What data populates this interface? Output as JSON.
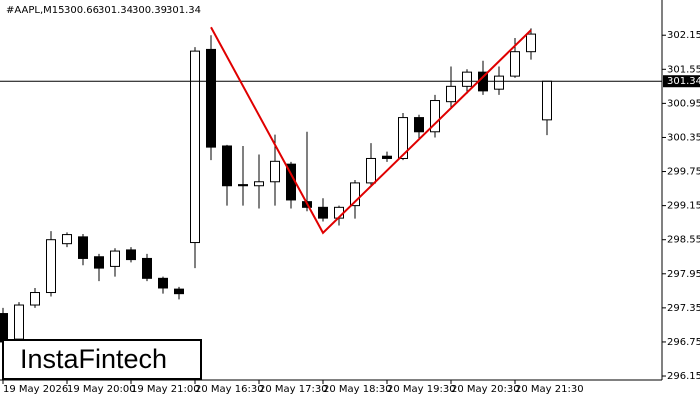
{
  "chart_data": {
    "type": "candlestick",
    "title": "#AAPL,M15",
    "ohlc": [
      300.66,
      301.34,
      300.39,
      301.34
    ],
    "categories": [
      "19 May 2026",
      null,
      null,
      null,
      "19 May 20:00",
      null,
      null,
      null,
      "19 May 21:00",
      null,
      null,
      null,
      "20 May 16:30",
      null,
      null,
      null,
      "20 May 17:30",
      null,
      null,
      null,
      "20 May 18:30",
      null,
      null,
      null,
      "20 May 19:30",
      null,
      null,
      null,
      "20 May 20:30",
      null,
      null,
      null,
      "20 May 21:30",
      null,
      null
    ],
    "open": [
      297.25,
      296.8,
      297.4,
      297.62,
      298.48,
      298.6,
      298.25,
      298.08,
      298.37,
      298.22,
      297.87,
      297.68,
      298.5,
      301.9,
      300.2,
      299.52,
      299.5,
      299.57,
      299.88,
      299.22,
      299.12,
      298.93,
      299.15,
      299.55,
      300.02,
      299.98,
      300.7,
      300.45,
      300.98,
      301.25,
      301.5,
      301.2,
      301.43,
      301.86,
      300.66
    ],
    "high": [
      297.35,
      297.45,
      297.7,
      298.7,
      298.68,
      298.65,
      298.3,
      298.4,
      298.42,
      298.3,
      297.9,
      297.72,
      301.94,
      302.15,
      300.22,
      300.2,
      300.05,
      300.4,
      299.92,
      300.45,
      299.28,
      299.15,
      299.6,
      300.25,
      300.1,
      300.78,
      300.75,
      301.1,
      301.6,
      301.55,
      301.7,
      301.6,
      302.1,
      302.27,
      301.34
    ],
    "low": [
      296.3,
      296.75,
      297.35,
      297.55,
      298.42,
      298.1,
      297.82,
      297.9,
      298.15,
      297.82,
      297.6,
      297.5,
      298.05,
      299.95,
      299.15,
      299.15,
      299.1,
      299.15,
      299.1,
      299.05,
      298.87,
      298.8,
      298.92,
      299.5,
      299.92,
      299.95,
      300.32,
      300.35,
      300.87,
      301.12,
      301.1,
      301.1,
      301.4,
      301.72,
      300.39
    ],
    "close": [
      296.75,
      297.4,
      297.62,
      298.55,
      298.64,
      298.22,
      298.05,
      298.35,
      298.2,
      297.87,
      297.7,
      297.6,
      301.87,
      300.18,
      299.5,
      299.5,
      299.57,
      299.93,
      299.25,
      299.12,
      298.93,
      299.12,
      299.55,
      299.98,
      299.98,
      300.7,
      300.45,
      301.0,
      301.25,
      301.5,
      301.17,
      301.43,
      301.86,
      302.17,
      301.34
    ],
    "last_price": 301.34,
    "pattern": {
      "color": "#e00000",
      "x": [
        13,
        20,
        33
      ],
      "y": [
        302.29,
        298.67,
        302.24
      ]
    },
    "ylim": [
      296.08,
      302.77
    ],
    "yticks": [
      302.15,
      301.55,
      300.95,
      300.35,
      299.75,
      299.15,
      298.55,
      297.95,
      297.35,
      296.75,
      296.15
    ],
    "logo": "InstaFintech"
  }
}
